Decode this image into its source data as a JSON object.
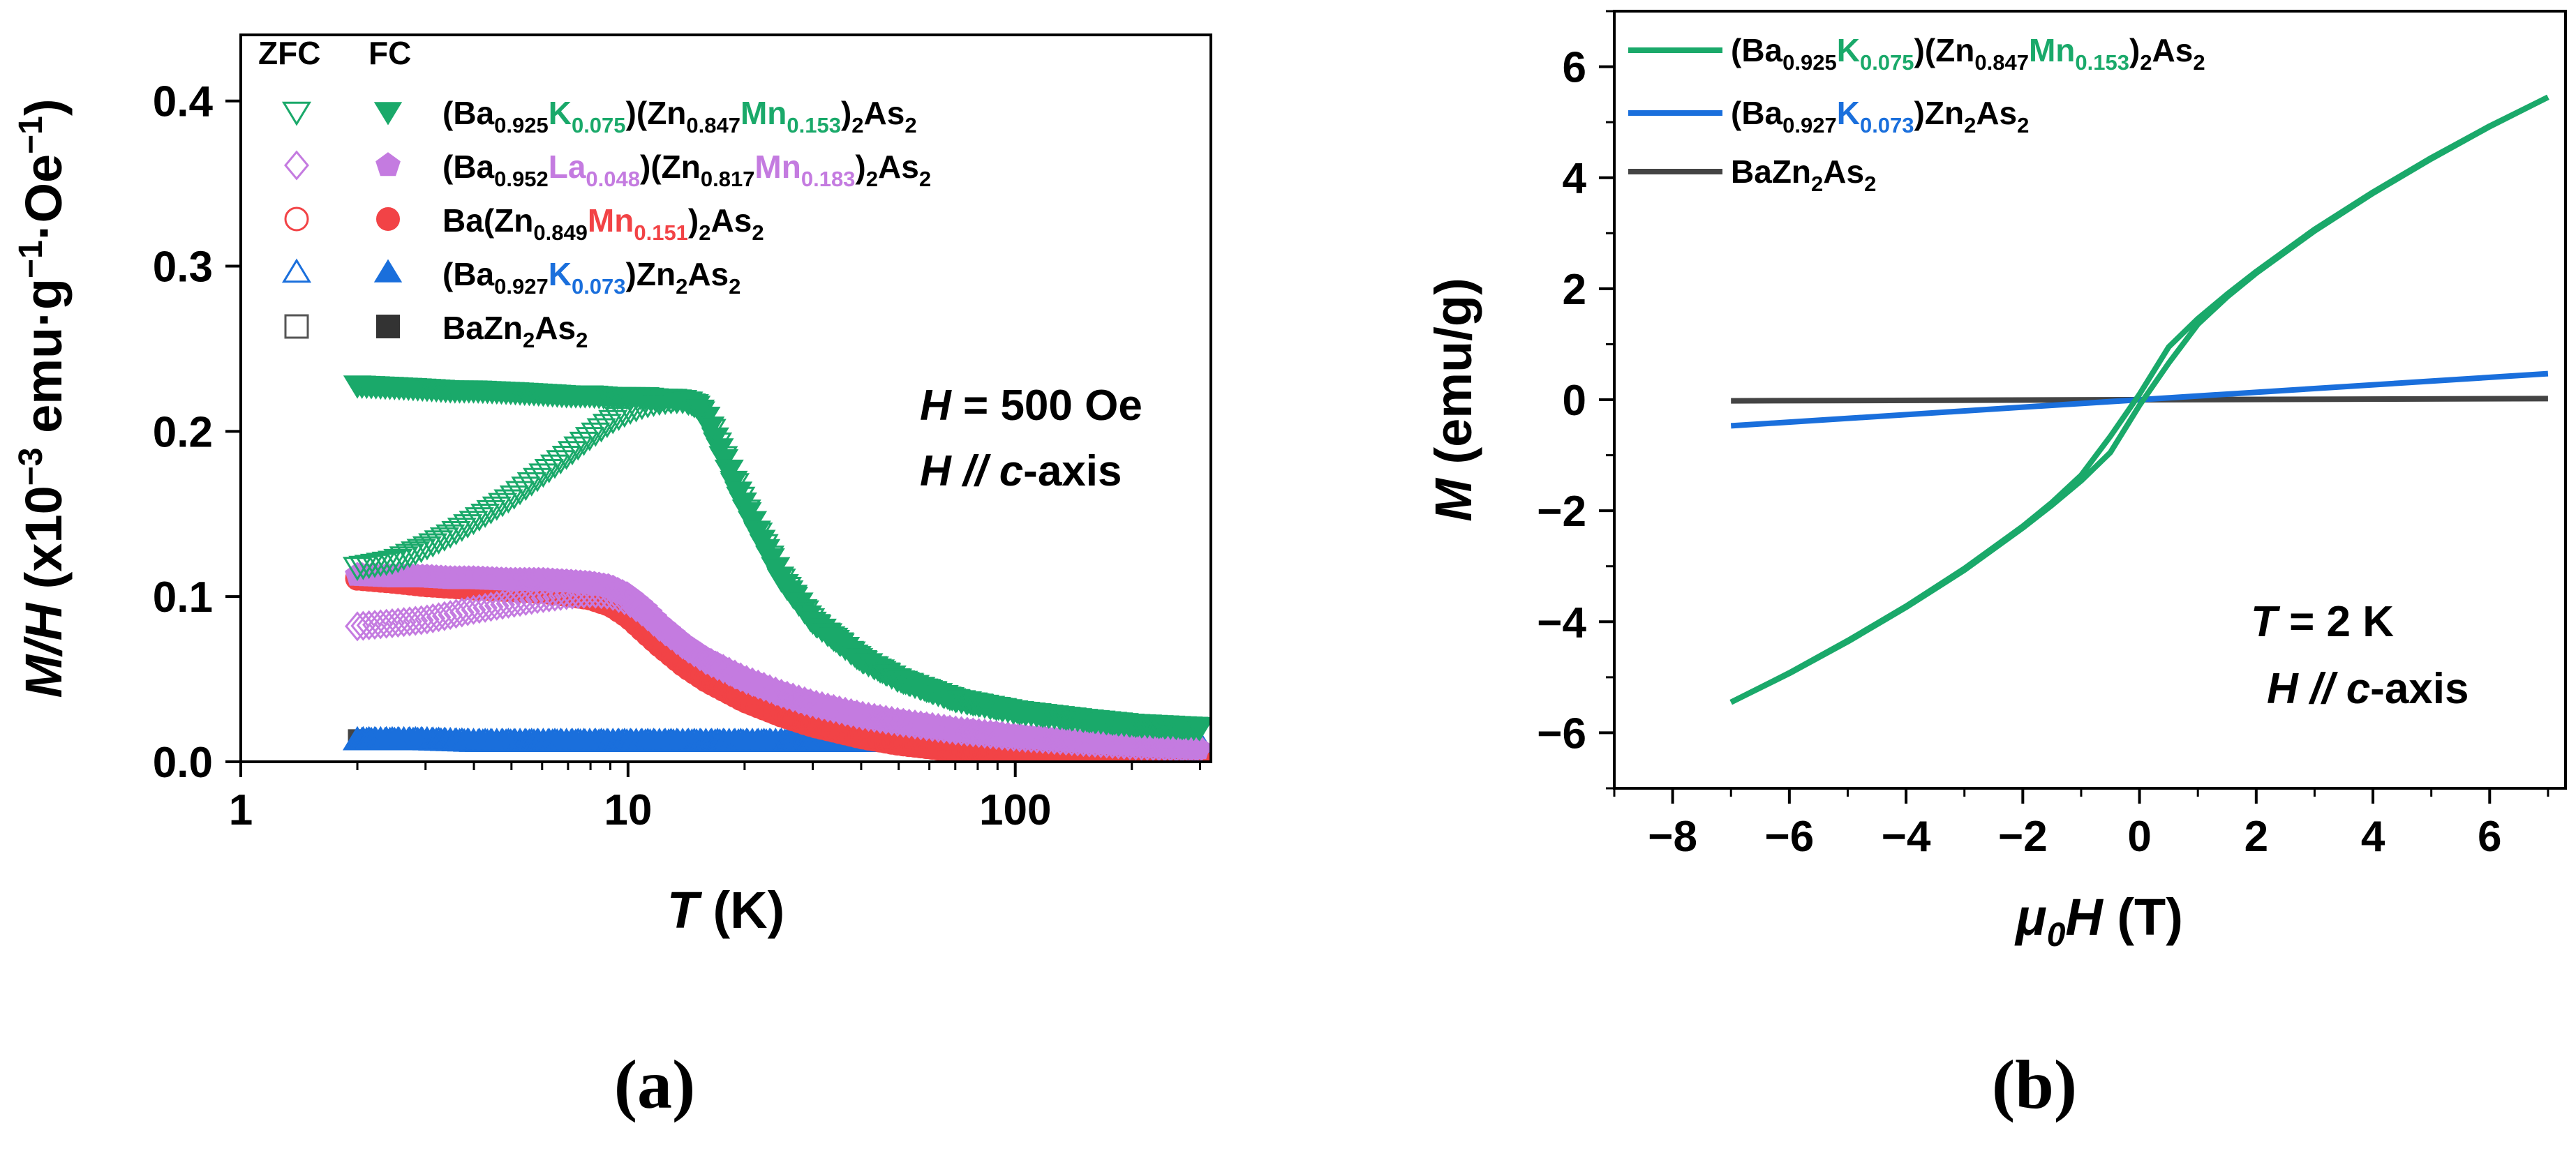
{
  "colors": {
    "green": "#1aa96a",
    "violet": "#c47be0",
    "red": "#f24346",
    "blue": "#1a6fdc",
    "black": "#444444"
  },
  "legend_a_headers": {
    "zfc": "ZFC",
    "fc": "FC"
  },
  "formula_parts": {
    "lp": "(",
    "rp": ")",
    "ba": "Ba",
    "k": "K",
    "la": "La",
    "zn": "Zn",
    "mn": "Mn",
    "as": "As",
    "n0925": "0.925",
    "n0075": "0.075",
    "n0847": "0.847",
    "n0153": "0.153",
    "n0952": "0.952",
    "n0048": "0.048",
    "n0817": "0.817",
    "n0183": "0.183",
    "n0849": "0.849",
    "n0151": "0.151",
    "n0927": "0.927",
    "n0073": "0.073",
    "two": "2"
  },
  "panel_labels": {
    "a": "(a)",
    "b": "(b)"
  },
  "chart_data": [
    {
      "type": "scatter",
      "panel": "(a)",
      "xscale": "log",
      "xlabel": {
        "sym": "T",
        "unit": " (K)"
      },
      "ylabel": {
        "sym": "M/H",
        "unit": " (x10",
        "exp1": "−3",
        "mid": " emu·g",
        "exp2": "−1",
        "mid2": "·Oe",
        "exp3": "−1",
        "end": ")"
      },
      "xlim": [
        1,
        320
      ],
      "ylim": [
        0,
        0.44
      ],
      "xticks": [
        1,
        10,
        100
      ],
      "xtick_labels": [
        "1",
        "10",
        "100"
      ],
      "yticks": [
        0,
        0.1,
        0.2,
        0.3,
        0.4
      ],
      "ytick_labels": [
        "0.0",
        "0.1",
        "0.2",
        "0.3",
        "0.4"
      ],
      "annotation": {
        "line1_sym": "H",
        "line1_rest": " = 500 Oe",
        "line2_sym": "H",
        "line2_mid": " // ",
        "line2_c": "c",
        "line2_rest": "-axis"
      },
      "legend_location": "top-left",
      "series": [
        {
          "key": "bkmn",
          "color": "green",
          "marker": "triangle-down",
          "zfc": {
            "x": [
              2,
              2.5,
              3,
              3.5,
              4,
              5,
              6,
              7,
              8,
              9,
              10,
              11,
              12,
              13,
              14,
              15,
              16,
              18,
              20,
              25,
              30,
              40,
              50,
              70,
              100,
              150,
              200,
              300
            ],
            "y": [
              0.118,
              0.122,
              0.13,
              0.138,
              0.146,
              0.16,
              0.174,
              0.186,
              0.197,
              0.206,
              0.212,
              0.216,
              0.218,
              0.219,
              0.219,
              0.216,
              0.208,
              0.18,
              0.155,
              0.11,
              0.085,
              0.062,
              0.05,
              0.038,
              0.031,
              0.026,
              0.023,
              0.021
            ]
          },
          "fc": {
            "x": [
              2,
              2.5,
              3,
              3.5,
              4,
              5,
              6,
              7,
              8,
              9,
              10,
              11,
              12,
              13,
              14,
              15,
              16,
              18,
              20,
              25,
              30,
              40,
              50,
              70,
              100,
              150,
              200,
              300
            ],
            "y": [
              0.228,
              0.227,
              0.226,
              0.225,
              0.225,
              0.224,
              0.223,
              0.222,
              0.222,
              0.221,
              0.221,
              0.221,
              0.22,
              0.22,
              0.219,
              0.216,
              0.208,
              0.18,
              0.155,
              0.11,
              0.085,
              0.062,
              0.05,
              0.038,
              0.031,
              0.026,
              0.023,
              0.021
            ]
          }
        },
        {
          "key": "blamn",
          "color": "violet",
          "marker": "pentagon",
          "zfc": {
            "x": [
              2,
              2.5,
              3,
              3.5,
              4,
              5,
              6,
              7,
              8,
              9,
              10,
              11,
              12,
              14,
              16,
              20,
              25,
              30,
              40,
              50,
              70,
              100,
              150,
              200,
              300
            ],
            "y": [
              0.082,
              0.084,
              0.086,
              0.089,
              0.092,
              0.096,
              0.099,
              0.101,
              0.102,
              0.101,
              0.097,
              0.09,
              0.082,
              0.07,
              0.061,
              0.05,
              0.041,
              0.035,
              0.028,
              0.024,
              0.019,
              0.015,
              0.012,
              0.01,
              0.008
            ]
          },
          "fc": {
            "x": [
              2,
              2.5,
              3,
              3.5,
              4,
              5,
              6,
              7,
              8,
              9,
              10,
              11,
              12,
              14,
              16,
              20,
              25,
              30,
              40,
              50,
              70,
              100,
              150,
              200,
              300
            ],
            "y": [
              0.113,
              0.112,
              0.112,
              0.111,
              0.111,
              0.11,
              0.11,
              0.109,
              0.108,
              0.106,
              0.101,
              0.093,
              0.084,
              0.071,
              0.062,
              0.05,
              0.041,
              0.035,
              0.028,
              0.024,
              0.019,
              0.015,
              0.012,
              0.01,
              0.008
            ]
          }
        },
        {
          "key": "bmn",
          "color": "red",
          "marker": "circle",
          "zfc": {
            "x": [
              2,
              2.5,
              3,
              3.5,
              4,
              5,
              6,
              7,
              8,
              9,
              10,
              11,
              12,
              14,
              16,
              20,
              25,
              30,
              40,
              50,
              70,
              100,
              150,
              200,
              300
            ],
            "y": [
              0.111,
              0.109,
              0.107,
              0.106,
              0.105,
              0.104,
              0.103,
              0.101,
              0.099,
              0.095,
              0.088,
              0.079,
              0.071,
              0.058,
              0.049,
              0.037,
              0.028,
              0.022,
              0.015,
              0.011,
              0.007,
              0.004,
              0.003,
              0.002,
              0.001
            ]
          },
          "fc": {
            "x": [
              2,
              2.5,
              3,
              3.5,
              4,
              5,
              6,
              7,
              8,
              9,
              10,
              11,
              12,
              14,
              16,
              20,
              25,
              30,
              40,
              50,
              70,
              100,
              150,
              200,
              300
            ],
            "y": [
              0.112,
              0.11,
              0.108,
              0.107,
              0.106,
              0.105,
              0.104,
              0.102,
              0.1,
              0.096,
              0.089,
              0.08,
              0.072,
              0.059,
              0.05,
              0.038,
              0.029,
              0.023,
              0.016,
              0.012,
              0.008,
              0.005,
              0.003,
              0.002,
              0.001
            ]
          }
        },
        {
          "key": "bk",
          "color": "blue",
          "marker": "triangle-up",
          "zfc": {
            "x": [
              2,
              3,
              4,
              6,
              8,
              10,
              15,
              20,
              30,
              50,
              70,
              100,
              150,
              200,
              300
            ],
            "y": [
              0.013,
              0.013,
              0.012,
              0.012,
              0.012,
              0.012,
              0.012,
              0.012,
              0.012,
              0.012,
              0.012,
              0.011,
              0.011,
              0.011,
              0.011
            ]
          },
          "fc": {
            "x": [
              2,
              3,
              4,
              6,
              8,
              10,
              15,
              20,
              30,
              50,
              70,
              100,
              150,
              200,
              300
            ],
            "y": [
              0.013,
              0.013,
              0.012,
              0.012,
              0.012,
              0.012,
              0.012,
              0.012,
              0.012,
              0.012,
              0.012,
              0.011,
              0.011,
              0.011,
              0.011
            ]
          }
        },
        {
          "key": "bza",
          "color": "black",
          "marker": "square",
          "zfc": {
            "x": [
              2,
              2.2,
              2.5
            ],
            "y": [
              0.014,
              0.013,
              0.013
            ]
          },
          "fc": {
            "x": [
              2,
              2.2,
              2.5
            ],
            "y": [
              0.014,
              0.013,
              0.013
            ]
          }
        }
      ]
    },
    {
      "type": "line",
      "panel": "(b)",
      "xlabel": {
        "sym": "μ",
        "sub": "0",
        "sym2": "H",
        "unit": " (T)"
      },
      "ylabel": {
        "sym": "M",
        "unit": " (emu/g)"
      },
      "xlim": [
        -9,
        7.3
      ],
      "ylim": [
        -7,
        7
      ],
      "xticks": [
        -8,
        -6,
        -4,
        -2,
        0,
        2,
        4,
        6
      ],
      "xtick_labels": [
        "−8",
        "−6",
        "−4",
        "−2",
        "0",
        "2",
        "4",
        "6"
      ],
      "yticks": [
        -6,
        -4,
        -2,
        0,
        2,
        4,
        6
      ],
      "ytick_labels": [
        "−6",
        "−4",
        "−2",
        "0",
        "2",
        "4",
        "6"
      ],
      "annotation": {
        "line1_sym": "T",
        "line1_rest": " = 2 K",
        "line2_sym": "H",
        "line2_mid": " // ",
        "line2_c": "c",
        "line2_rest": "-axis"
      },
      "legend_location": "top-left",
      "series": [
        {
          "key": "bkmn",
          "color": "green",
          "x": [
            -7,
            -6,
            -5,
            -4,
            -3,
            -2,
            -1.5,
            -1,
            -0.5,
            0,
            0.5,
            1,
            1.5,
            2,
            3,
            4,
            5,
            6,
            7
          ],
          "y_up": [
            -5.45,
            -4.92,
            -4.34,
            -3.72,
            -3.04,
            -2.28,
            -1.85,
            -1.36,
            -0.66,
            0.1,
            0.95,
            1.46,
            1.9,
            2.31,
            3.07,
            3.74,
            4.36,
            4.93,
            5.45
          ],
          "y_down": [
            -5.45,
            -4.93,
            -4.36,
            -3.74,
            -3.07,
            -2.31,
            -1.9,
            -1.46,
            -0.95,
            -0.1,
            0.66,
            1.36,
            1.85,
            2.28,
            3.04,
            3.72,
            4.34,
            4.92,
            5.45
          ]
        },
        {
          "key": "bk",
          "color": "blue",
          "x": [
            -7,
            0,
            7
          ],
          "y": [
            -0.47,
            0,
            0.47
          ]
        },
        {
          "key": "bza",
          "color": "black",
          "x": [
            -7,
            0,
            7
          ],
          "y": [
            -0.02,
            0,
            0.02
          ]
        }
      ]
    }
  ]
}
